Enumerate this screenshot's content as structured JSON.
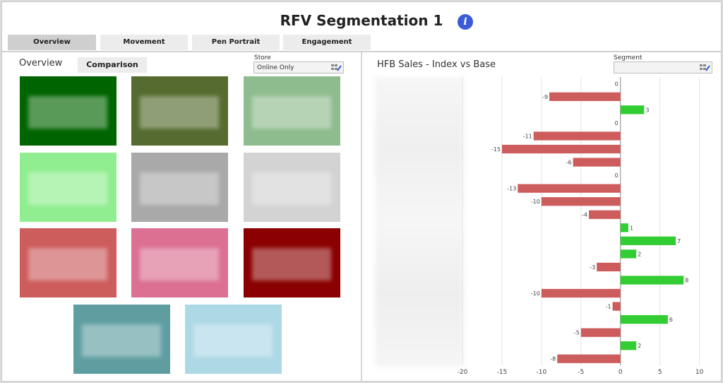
{
  "header": {
    "title": "RFV Segmentation 1",
    "info_icon": "info-icon"
  },
  "tabs": [
    {
      "label": "Overview",
      "active": true
    },
    {
      "label": "Movement",
      "active": false
    },
    {
      "label": "Pen Portrait",
      "active": false
    },
    {
      "label": "Engagement",
      "active": false
    }
  ],
  "left_panel": {
    "heading": "Overview",
    "comparison_label": "Comparison",
    "store": {
      "label": "Store",
      "value": "Online Only",
      "icon": "filter-edit-icon"
    },
    "tiles": [
      {
        "color": "#006400"
      },
      {
        "color": "#556b2f"
      },
      {
        "color": "#8fbc8f"
      },
      {
        "color": "#90ee90"
      },
      {
        "color": "#a9a9a9"
      },
      {
        "color": "#d3d3d3"
      },
      {
        "color": "#cd5c5c"
      },
      {
        "color": "#db7093"
      },
      {
        "color": "#8b0000"
      },
      {
        "color": "#5f9ea0"
      },
      {
        "color": "#add8e6"
      }
    ]
  },
  "right_panel": {
    "title": "HFB Sales - Index vs Base",
    "segment": {
      "label": "Segment",
      "value": "",
      "icon": "filter-edit-icon"
    }
  },
  "colors": {
    "negative": "#cd5c5c",
    "positive": "#32cd32"
  },
  "chart_data": {
    "type": "bar",
    "orientation": "horizontal",
    "title": "HFB Sales - Index vs Base",
    "values": [
      0,
      -9,
      3,
      0,
      -11,
      -15,
      -6,
      0,
      -13,
      -10,
      -4,
      1,
      7,
      2,
      -3,
      8,
      -10,
      -1,
      6,
      -5,
      2,
      -8
    ],
    "xlim": [
      -20,
      12
    ],
    "xticks": [
      -20,
      -15,
      -10,
      -5,
      0,
      5,
      10
    ],
    "grid": true,
    "category_labels_visible": false
  }
}
